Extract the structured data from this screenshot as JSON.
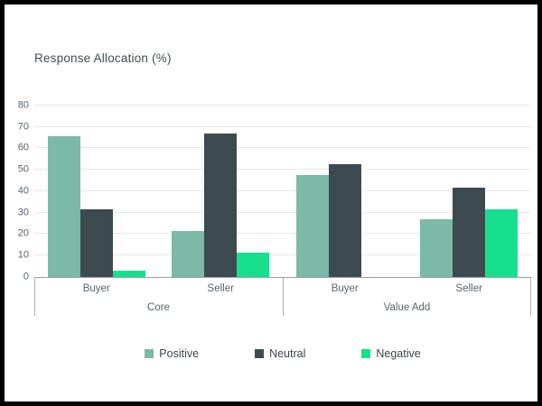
{
  "header": {
    "title": "Response Allocation (%)"
  },
  "chart_data": {
    "type": "bar",
    "title": "Response Allocation (%)",
    "xlabel": "",
    "ylabel": "",
    "ylim": [
      0,
      85
    ],
    "yticks": [
      0,
      10,
      20,
      30,
      40,
      50,
      60,
      70,
      80
    ],
    "grid": true,
    "legend_position": "bottom",
    "group_labels": [
      "Core",
      "Value Add"
    ],
    "categories": [
      "Buyer",
      "Seller",
      "Buyer",
      "Seller"
    ],
    "category_groups": [
      "Core",
      "Core",
      "Value Add",
      "Value Add"
    ],
    "series": [
      {
        "name": "Positive",
        "color": "#7cb9a6",
        "values": [
          65.5,
          21.5,
          47.5,
          27
        ]
      },
      {
        "name": "Neutral",
        "color": "#3d4b50",
        "values": [
          31.5,
          67,
          52.5,
          41.5
        ]
      },
      {
        "name": "Negative",
        "color": "#18df8d",
        "values": [
          3,
          11.5,
          0,
          31.5
        ]
      }
    ]
  },
  "legend": {
    "items": [
      "Positive",
      "Neutral",
      "Negative"
    ]
  },
  "colors": {
    "positive": "#7cb9a6",
    "neutral": "#3d4b50",
    "negative": "#18df8d",
    "background": "#ffffff",
    "frame_border": "#000000",
    "gridline": "#e8e8e8",
    "axis_line": "#9aa0a5",
    "text": "#56636d"
  }
}
